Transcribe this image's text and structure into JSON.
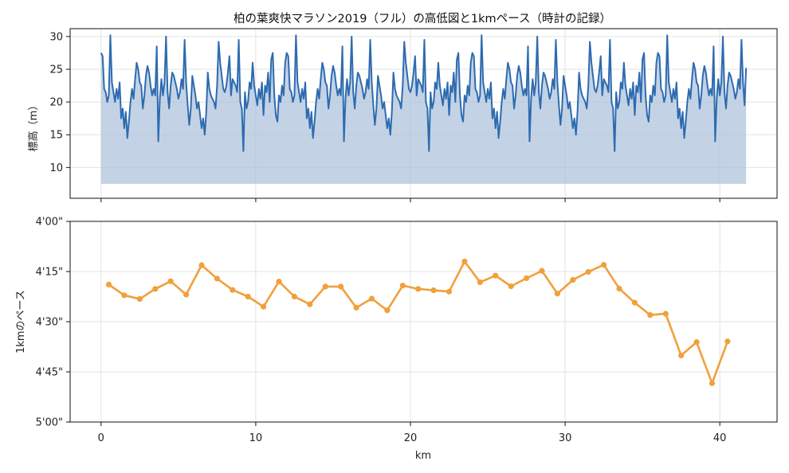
{
  "title": "柏の葉爽快マラソン2019（フル）の高低図と1kmペース（時計の記録）",
  "colors": {
    "elevation_line": "#2e6bb0",
    "elevation_fill": "#aac1da",
    "pace_line": "#f0a03c",
    "grid": "#e3e3e3"
  },
  "chart_data": [
    {
      "type": "area",
      "name": "elevation",
      "ylabel": "標高（m）",
      "xlim": [
        -2,
        43.7
      ],
      "ylim": [
        5.3,
        31.2
      ],
      "yticks": [
        10,
        15,
        20,
        25,
        30
      ],
      "xticks": [
        0,
        10,
        20,
        30,
        40
      ],
      "show_x_tick_labels": false,
      "grid": true,
      "baseline": 7.5,
      "pattern_x": [
        0.0,
        0.1,
        0.2,
        0.3,
        0.4,
        0.5,
        0.6,
        0.7,
        0.8,
        0.9,
        1.0,
        1.1,
        1.2,
        1.3,
        1.4,
        1.5,
        1.6,
        1.7,
        1.8,
        1.9,
        2.0,
        2.1,
        2.2,
        2.3,
        2.4,
        2.5,
        2.6,
        2.7,
        2.8,
        2.9,
        3.0,
        3.1,
        3.2,
        3.3,
        3.4,
        3.5,
        3.6,
        3.7,
        3.8,
        3.9,
        4.0,
        4.1,
        4.2,
        4.3,
        4.4,
        4.5,
        4.6,
        4.7,
        4.8,
        4.9,
        5.0,
        5.1,
        5.2,
        5.3,
        5.4,
        5.5,
        5.6,
        5.7,
        5.8,
        5.9,
        6.0,
        6.1,
        6.2,
        6.3,
        6.4,
        6.5,
        6.6,
        6.7,
        6.8,
        6.9,
        7.0,
        7.1,
        7.2,
        7.3,
        7.4,
        7.5,
        7.6,
        7.7,
        7.8,
        7.9,
        8.0,
        8.1,
        8.2,
        8.3,
        8.4,
        8.5,
        8.6,
        8.7,
        8.8,
        8.9,
        9.0,
        9.1,
        9.2,
        9.3,
        9.4,
        9.5,
        9.6,
        9.7,
        9.8,
        9.9,
        10.0,
        10.1,
        10.2,
        10.3,
        10.4,
        10.5,
        10.6,
        10.7,
        10.8,
        10.9,
        11.0,
        11.1,
        11.2,
        11.3,
        11.4,
        11.5,
        11.6,
        11.7,
        11.8,
        11.9
      ],
      "pattern_y": [
        27.5,
        27.0,
        22.0,
        21.5,
        20.0,
        21.0,
        30.2,
        23.0,
        21.5,
        20.0,
        22.0,
        20.5,
        23.0,
        17.5,
        19.0,
        16.0,
        18.5,
        14.5,
        17.0,
        20.0,
        22.0,
        20.5,
        23.5,
        26.0,
        25.0,
        23.0,
        22.5,
        19.0,
        21.0,
        24.0,
        25.5,
        24.5,
        22.5,
        21.0,
        22.0,
        21.0,
        28.5,
        14.0,
        20.5,
        23.5,
        21.0,
        23.0,
        30.0,
        21.5,
        19.0,
        22.5,
        24.5,
        24.0,
        23.0,
        22.0,
        20.5,
        21.5,
        23.5,
        22.0,
        29.5,
        23.0,
        19.5,
        16.5,
        19.0,
        24.0,
        22.5,
        21.0,
        19.0,
        20.0,
        18.0,
        16.0,
        17.5,
        15.0,
        18.5,
        24.5,
        22.0,
        21.0,
        20.5,
        20.0,
        19.0,
        22.5,
        29.2,
        26.0,
        24.0,
        22.0,
        21.5,
        22.5,
        24.5,
        27.0,
        21.0,
        23.5,
        23.0,
        22.5,
        21.5,
        29.5,
        20.0,
        19.0,
        12.5,
        21.5,
        19.0,
        20.0,
        23.0,
        22.0,
        26.0,
        22.5,
        21.0,
        19.5,
        22.0,
        20.5,
        23.0,
        18.0,
        22.5,
        21.5,
        24.5,
        20.0,
        26.5,
        27.5,
        21.0,
        18.0,
        17.0,
        21.0,
        20.0,
        22.5,
        21.0,
        26.0
      ],
      "pattern_period_km": 12,
      "x_end": 41.7,
      "end_y": 25.2
    },
    {
      "type": "line",
      "name": "pace",
      "ylabel": "1kmのペース",
      "xlabel": "km",
      "xlim": [
        -2,
        43.7
      ],
      "yticks": [
        "4'00\"",
        "4'15\"",
        "4'30\"",
        "4'45\"",
        "5'00\""
      ],
      "ytick_seconds": [
        240,
        255,
        270,
        285,
        300
      ],
      "ylim_seconds": [
        240,
        300
      ],
      "y_inverted": true,
      "xticks": [
        0,
        10,
        20,
        30,
        40
      ],
      "grid": true,
      "x": [
        0.5,
        1.5,
        2.5,
        3.5,
        4.5,
        5.5,
        6.5,
        7.5,
        8.5,
        9.5,
        10.5,
        11.5,
        12.5,
        13.5,
        14.5,
        15.5,
        16.5,
        17.5,
        18.5,
        19.5,
        20.5,
        21.5,
        22.5,
        23.5,
        24.5,
        25.5,
        26.5,
        27.5,
        28.5,
        29.5,
        30.5,
        31.5,
        32.5,
        33.5,
        34.5,
        35.5,
        36.5,
        37.5,
        38.5,
        39.5,
        40.5
      ],
      "y_seconds": [
        258.9,
        262.1,
        263.2,
        260.2,
        257.9,
        261.9,
        253.1,
        257.1,
        260.5,
        262.5,
        265.5,
        258.0,
        262.5,
        264.8,
        259.5,
        259.5,
        265.8,
        263.1,
        266.6,
        259.2,
        260.2,
        260.6,
        261.0,
        252.0,
        258.2,
        256.2,
        259.4,
        257.0,
        254.8,
        261.6,
        257.5,
        255.1,
        253.0,
        260.1,
        264.3,
        268.0,
        267.6,
        280.1,
        276.1,
        288.4,
        275.9
      ]
    }
  ]
}
